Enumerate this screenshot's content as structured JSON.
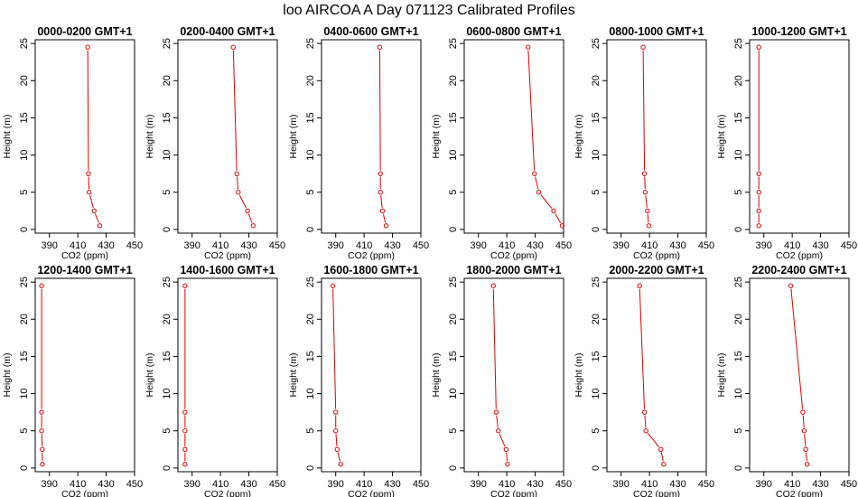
{
  "title": "loo AIRCOA A  Day 071123  Calibrated Profiles",
  "colors": {
    "profile": "#dd0000",
    "axes": "#000000",
    "background": "#ffffff"
  },
  "chart_data": [
    {
      "type": "line",
      "title": "0000-0200 GMT+1",
      "xlabel": "CO2 (ppm)",
      "ylabel": "Height (m)",
      "xlim": [
        380,
        450
      ],
      "ylim": [
        0,
        25
      ],
      "xticks": [
        390,
        410,
        430,
        450
      ],
      "yticks": [
        0,
        5,
        10,
        15,
        20,
        25
      ],
      "x": [
        425.5,
        421.5,
        418.0,
        417.5,
        417.0
      ],
      "y": [
        0.5,
        2.5,
        5,
        7.5,
        24.5
      ]
    },
    {
      "type": "line",
      "title": "0200-0400 GMT+1",
      "xlabel": "CO2 (ppm)",
      "ylabel": "Height (m)",
      "xlim": [
        380,
        450
      ],
      "ylim": [
        0,
        25
      ],
      "xticks": [
        390,
        410,
        430,
        450
      ],
      "yticks": [
        0,
        5,
        10,
        15,
        20,
        25
      ],
      "x": [
        433.0,
        429.0,
        422.5,
        421.5,
        419.0
      ],
      "y": [
        0.5,
        2.5,
        5,
        7.5,
        24.5
      ]
    },
    {
      "type": "line",
      "title": "0400-0600 GMT+1",
      "xlabel": "CO2 (ppm)",
      "ylabel": "Height (m)",
      "xlim": [
        380,
        450
      ],
      "ylim": [
        0,
        25
      ],
      "xticks": [
        390,
        410,
        430,
        450
      ],
      "yticks": [
        0,
        5,
        10,
        15,
        20,
        25
      ],
      "x": [
        425.5,
        423.0,
        421.5,
        421.5,
        421.0
      ],
      "y": [
        0.5,
        2.5,
        5,
        7.5,
        24.5
      ]
    },
    {
      "type": "line",
      "title": "0600-0800 GMT+1",
      "xlabel": "CO2 (ppm)",
      "ylabel": "Height (m)",
      "xlim": [
        380,
        450
      ],
      "ylim": [
        0,
        25
      ],
      "xticks": [
        390,
        410,
        430,
        450
      ],
      "yticks": [
        0,
        5,
        10,
        15,
        20,
        25
      ],
      "x": [
        449.0,
        443.0,
        432.5,
        429.5,
        425.0
      ],
      "y": [
        0.5,
        2.5,
        5,
        7.5,
        24.5
      ]
    },
    {
      "type": "line",
      "title": "0800-1000 GMT+1",
      "xlabel": "CO2 (ppm)",
      "ylabel": "Height (m)",
      "xlim": [
        380,
        450
      ],
      "ylim": [
        0,
        25
      ],
      "xticks": [
        390,
        410,
        430,
        450
      ],
      "yticks": [
        0,
        5,
        10,
        15,
        20,
        25
      ],
      "x": [
        409.5,
        408.5,
        407.0,
        406.5,
        405.5
      ],
      "y": [
        0.5,
        2.5,
        5,
        7.5,
        24.5
      ]
    },
    {
      "type": "line",
      "title": "1000-1200 GMT+1",
      "xlabel": "CO2 (ppm)",
      "ylabel": "Height (m)",
      "xlim": [
        380,
        450
      ],
      "ylim": [
        0,
        25
      ],
      "xticks": [
        390,
        410,
        430,
        450
      ],
      "yticks": [
        0,
        5,
        10,
        15,
        20,
        25
      ],
      "x": [
        386.5,
        386.5,
        386.5,
        386.5,
        386.5
      ],
      "y": [
        0.5,
        2.5,
        5,
        7.5,
        24.5
      ]
    },
    {
      "type": "line",
      "title": "1200-1400 GMT+1",
      "xlabel": "CO2 (ppm)",
      "ylabel": "Height (m)",
      "xlim": [
        380,
        450
      ],
      "ylim": [
        0,
        25
      ],
      "xticks": [
        390,
        410,
        430,
        450
      ],
      "yticks": [
        0,
        5,
        10,
        15,
        20,
        25
      ],
      "x": [
        385.0,
        385.0,
        384.5,
        384.5,
        384.5
      ],
      "y": [
        0.5,
        2.5,
        5,
        7.5,
        24.5
      ]
    },
    {
      "type": "line",
      "title": "1400-1600 GMT+1",
      "xlabel": "CO2 (ppm)",
      "ylabel": "Height (m)",
      "xlim": [
        380,
        450
      ],
      "ylim": [
        0,
        25
      ],
      "xticks": [
        390,
        410,
        430,
        450
      ],
      "yticks": [
        0,
        5,
        10,
        15,
        20,
        25
      ],
      "x": [
        385.0,
        385.0,
        385.0,
        385.0,
        385.0
      ],
      "y": [
        0.5,
        2.5,
        5,
        7.5,
        24.5
      ]
    },
    {
      "type": "line",
      "title": "1600-1800 GMT+1",
      "xlabel": "CO2 (ppm)",
      "ylabel": "Height (m)",
      "xlim": [
        380,
        450
      ],
      "ylim": [
        0,
        25
      ],
      "xticks": [
        390,
        410,
        430,
        450
      ],
      "yticks": [
        0,
        5,
        10,
        15,
        20,
        25
      ],
      "x": [
        393.5,
        391.0,
        390.0,
        390.0,
        388.0
      ],
      "y": [
        0.5,
        2.5,
        5,
        7.5,
        24.5
      ]
    },
    {
      "type": "line",
      "title": "1800-2000 GMT+1",
      "xlabel": "CO2 (ppm)",
      "ylabel": "Height (m)",
      "xlim": [
        380,
        450
      ],
      "ylim": [
        0,
        25
      ],
      "xticks": [
        390,
        410,
        430,
        450
      ],
      "yticks": [
        0,
        5,
        10,
        15,
        20,
        25
      ],
      "x": [
        410.5,
        409.5,
        404.0,
        402.5,
        400.5
      ],
      "y": [
        0.5,
        2.5,
        5,
        7.5,
        24.5
      ]
    },
    {
      "type": "line",
      "title": "2000-2200 GMT+1",
      "xlabel": "CO2 (ppm)",
      "ylabel": "Height (m)",
      "xlim": [
        380,
        450
      ],
      "ylim": [
        0,
        25
      ],
      "xticks": [
        390,
        410,
        430,
        450
      ],
      "yticks": [
        0,
        5,
        10,
        15,
        20,
        25
      ],
      "x": [
        420.0,
        418.0,
        407.5,
        406.5,
        403.0
      ],
      "y": [
        0.5,
        2.5,
        5,
        7.5,
        24.5
      ]
    },
    {
      "type": "line",
      "title": "2200-2400 GMT+1",
      "xlabel": "CO2 (ppm)",
      "ylabel": "Height (m)",
      "xlim": [
        380,
        450
      ],
      "ylim": [
        0,
        25
      ],
      "xticks": [
        390,
        410,
        430,
        450
      ],
      "yticks": [
        0,
        5,
        10,
        15,
        20,
        25
      ],
      "x": [
        420.5,
        419.5,
        418.5,
        417.5,
        409.0
      ],
      "y": [
        0.5,
        2.5,
        5,
        7.5,
        24.5
      ]
    }
  ]
}
